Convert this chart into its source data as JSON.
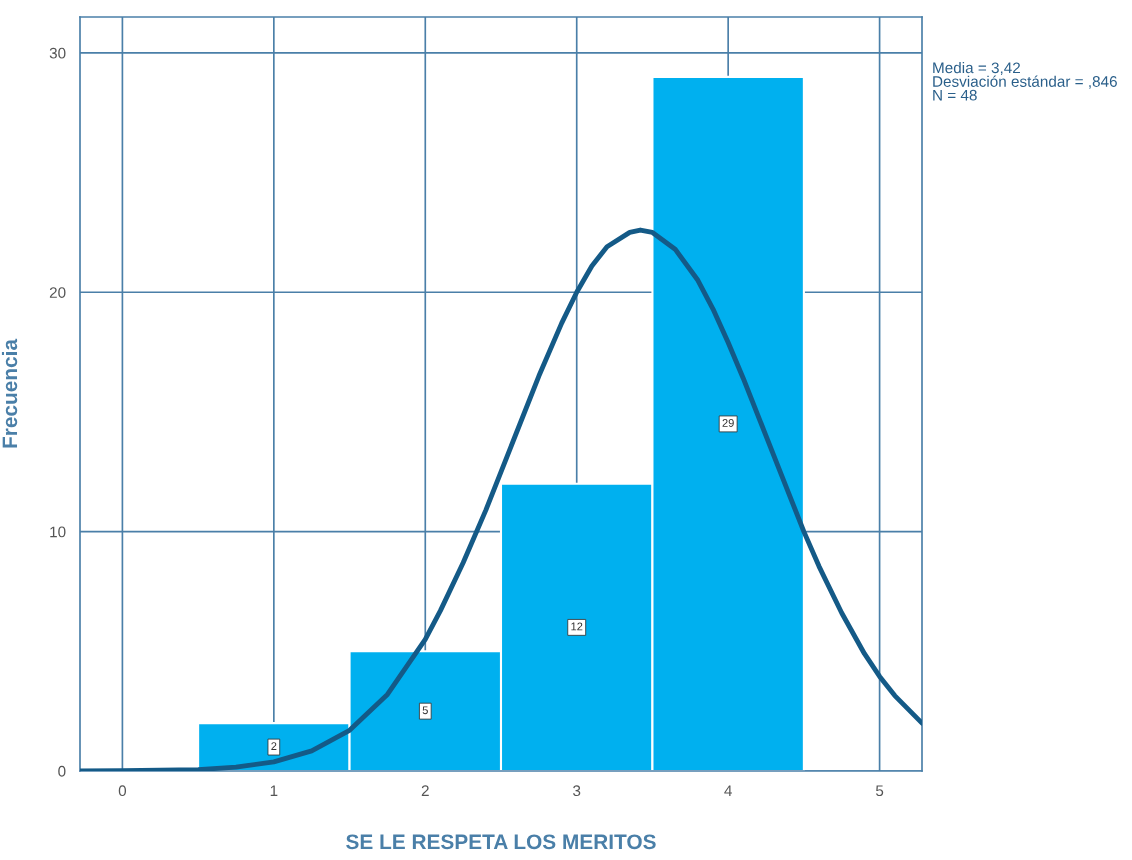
{
  "chart_data": {
    "type": "histogram",
    "xlabel": "SE LE RESPETA LOS MERITOS",
    "ylabel": "Frecuencia",
    "bins": [
      0.5,
      1.5,
      2.5,
      3.5,
      4.5
    ],
    "values": [
      2,
      5,
      12,
      29
    ],
    "color": "#00b0ef",
    "value_labels": [
      "2",
      "5",
      "12",
      "29"
    ],
    "series": [
      {
        "type": "line",
        "color": "#145a87",
        "x": [
          -0.28,
          0,
          0.5,
          0.75,
          1,
          1.25,
          1.5,
          1.75,
          2,
          2.1,
          2.25,
          2.4,
          2.5,
          2.6,
          2.75,
          2.9,
          3,
          3.1,
          3.2,
          3.35,
          3.42,
          3.5,
          3.65,
          3.8,
          3.9,
          4,
          4.1,
          4.25,
          4.4,
          4.5,
          4.6,
          4.75,
          4.9,
          5,
          5.1,
          5.28
        ],
        "values": [
          0.0,
          0.01,
          0.06,
          0.16,
          0.38,
          0.84,
          1.7,
          3.2,
          5.5,
          6.7,
          8.7,
          10.9,
          12.5,
          14.1,
          16.5,
          18.7,
          20.0,
          21.1,
          21.9,
          22.5,
          22.6,
          22.5,
          21.8,
          20.5,
          19.3,
          17.9,
          16.4,
          14.0,
          11.6,
          10.0,
          8.55,
          6.6,
          4.9,
          3.95,
          3.15,
          2.0
        ]
      }
    ],
    "xlim": [
      -0.28,
      5.28
    ],
    "ylim": [
      0,
      31.5
    ],
    "xticks": [
      0,
      1,
      2,
      3,
      4,
      5
    ],
    "yticks": [
      0,
      10,
      20,
      30
    ],
    "grid": true,
    "annotations": [
      "Media = 3,42\nDesviación estándar = ,846\nN = 48"
    ]
  }
}
